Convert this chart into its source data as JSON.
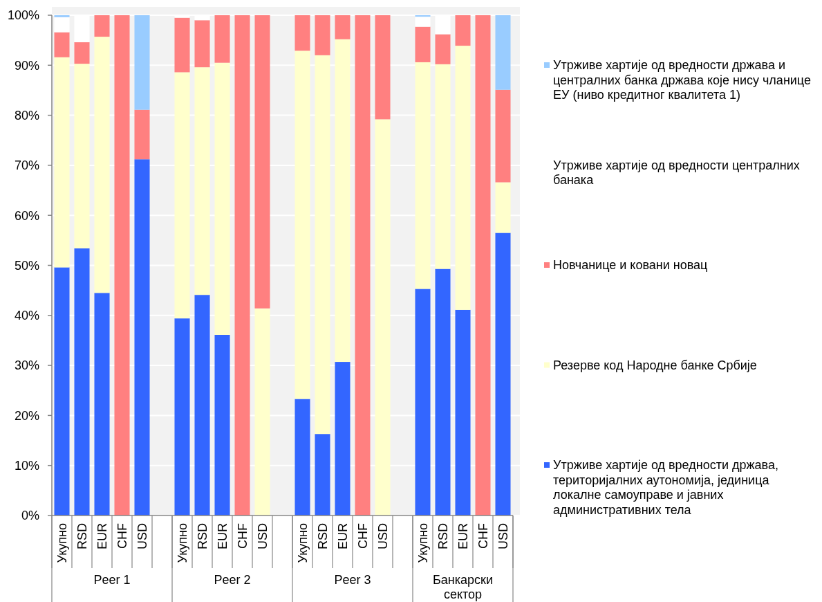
{
  "chart_data": {
    "type": "bar",
    "stacked": true,
    "categories": [
      "Укупно",
      "RSD",
      "EUR",
      "CHF",
      "USD",
      null,
      "Укупно",
      "RSD",
      "EUR",
      "CHF",
      "USD",
      null,
      "Укупно",
      "RSD",
      "EUR",
      "CHF",
      "USD",
      null,
      "Укупно",
      "RSD",
      "EUR",
      "CHF",
      "USD"
    ],
    "series": [
      {
        "name": "Утрживе хартије од вредности држава, територијалних аутономија, јединица локалне самоуправе и јавних административних тела",
        "color": "#3366ff",
        "values": [
          49.6,
          53.4,
          44.5,
          null,
          71.2,
          null,
          39.4,
          44.1,
          36.1,
          null,
          null,
          null,
          23.3,
          16.3,
          30.7,
          null,
          null,
          null,
          45.3,
          49.3,
          41.1,
          null,
          56.5
        ]
      },
      {
        "name": "Резерве код Народне банке Србије",
        "color": "#ffffcc",
        "values": [
          42.0,
          36.9,
          51.2,
          null,
          null,
          null,
          49.2,
          45.5,
          54.4,
          null,
          41.4,
          null,
          69.6,
          75.7,
          64.5,
          null,
          79.2,
          null,
          45.3,
          40.9,
          52.8,
          null,
          10.1
        ]
      },
      {
        "name": "Новчанице и ковани новац",
        "color": "#ff8080",
        "values": [
          5.0,
          4.3,
          4.3,
          100,
          9.9,
          null,
          10.9,
          9.4,
          9.5,
          100,
          58.6,
          null,
          7.1,
          8.0,
          4.8,
          100,
          20.8,
          null,
          7.1,
          6.0,
          6.1,
          100,
          18.5
        ]
      },
      {
        "name": "Утрживе хартије од вредности централних банака",
        "color": "#ffffff",
        "values": [
          3.0,
          5.4,
          null,
          null,
          null,
          null,
          0.5,
          1.0,
          null,
          null,
          null,
          null,
          null,
          null,
          null,
          null,
          null,
          null,
          2.0,
          3.8,
          null,
          null,
          null
        ]
      },
      {
        "name": "Утрживе хартије од вредности држава и централних банка држава које нису чланице ЕУ (ниво кредитног квалитета 1)",
        "color": "#99ccff",
        "values": [
          0.4,
          null,
          null,
          null,
          18.9,
          null,
          null,
          null,
          null,
          null,
          null,
          null,
          null,
          null,
          null,
          null,
          null,
          null,
          0.3,
          null,
          null,
          null,
          14.9
        ]
      }
    ],
    "ylim": [
      0,
      100
    ],
    "yticks": [
      {
        "value": 0,
        "label": "0%"
      },
      {
        "value": 10,
        "label": "10%"
      },
      {
        "value": 20,
        "label": "20%"
      },
      {
        "value": 30,
        "label": "30%"
      },
      {
        "value": 40,
        "label": "40%"
      },
      {
        "value": 50,
        "label": "50%"
      },
      {
        "value": 60,
        "label": "60%"
      },
      {
        "value": 70,
        "label": "70%"
      },
      {
        "value": 80,
        "label": "80%"
      },
      {
        "value": 90,
        "label": "90%"
      },
      {
        "value": 100,
        "label": "100%"
      }
    ],
    "grid": "y",
    "legend": "right",
    "annotations": [
      "Peer 1",
      "Peer 2",
      "Peer 3",
      "Банкарски сектор"
    ]
  }
}
